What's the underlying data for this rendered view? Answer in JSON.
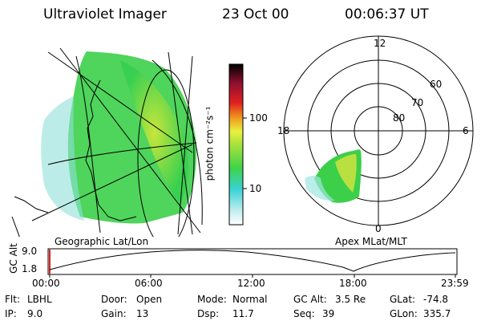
{
  "header": {
    "instrument": "Ultraviolet Imager",
    "date": "23 Oct 00",
    "time": "00:06:37 UT"
  },
  "colorbar": {
    "unit_label": "photon cm⁻²s⁻¹",
    "tick_100": "100",
    "tick_10": "10"
  },
  "left_panel": {
    "label": "Geographic Lat/Lon"
  },
  "right_panel": {
    "label": "Apex MLat/MLT",
    "mlt_12": "12",
    "mlt_18": "18",
    "mlt_6": "6",
    "mlt_0": "0",
    "lat_60": "60",
    "lat_70": "70",
    "lat_80": "80"
  },
  "altitude_plot": {
    "ylabel": "GC Alt",
    "y_max": "9.0",
    "y_min": "1.8",
    "x_ticks": [
      "00:00",
      "06:00",
      "12:00",
      "18:00",
      "23:59"
    ]
  },
  "info": {
    "flt_label": "Flt:",
    "flt_value": "LBHL",
    "ip_label": "IP:",
    "ip_value": "9.0",
    "door_label": "Door:",
    "door_value": "Open",
    "gain_label": "Gain:",
    "gain_value": "13",
    "mode_label": "Mode:",
    "mode_value": "Normal",
    "dsp_label": "Dsp:",
    "dsp_value": "11.7",
    "gcalt_label": "GC Alt:",
    "gcalt_value": "3.5 Re",
    "seq_label": "Seq:",
    "seq_value": "39",
    "glat_label": "GLat:",
    "glat_value": "-74.8",
    "glon_label": "GLon:",
    "glon_value": "335.7"
  }
}
